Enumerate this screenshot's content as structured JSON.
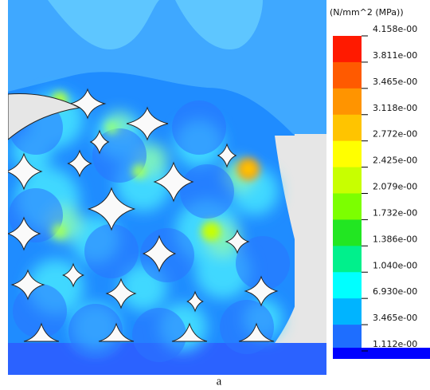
{
  "legend": {
    "unit": "(N/mm^2 (MPa))",
    "labels": [
      "4.158e-00",
      "3.811e-00",
      "3.465e-00",
      "3.118e-00",
      "2.772e-00",
      "2.425e-00",
      "2.079e-00",
      "1.732e-00",
      "1.386e-00",
      "1.040e-00",
      "6.930e-00",
      "3.465e-00",
      "1.112e-00"
    ],
    "colors": [
      "#ff1a00",
      "#ff5a00",
      "#ff9400",
      "#ffc400",
      "#ffff00",
      "#c8ff00",
      "#7cff00",
      "#22e622",
      "#00f08c",
      "#00ffff",
      "#00b4ff",
      "#1e6eff"
    ]
  },
  "caption": "a"
}
